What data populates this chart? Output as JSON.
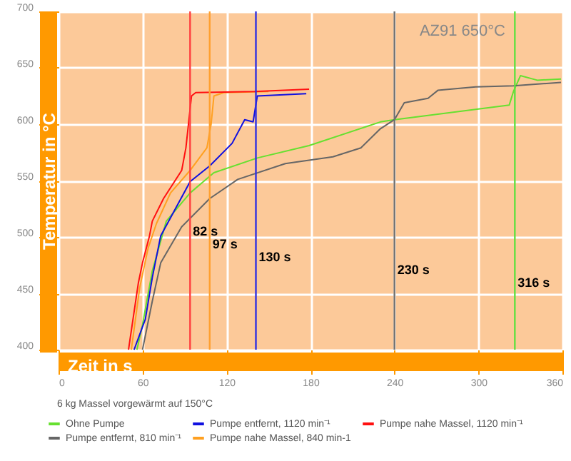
{
  "chart_data": {
    "type": "line",
    "title": "AZ91 650°C",
    "xlabel": "Zeit in s",
    "ylabel": "Temperatur in °C",
    "xlim": [
      0,
      360
    ],
    "xticks": [
      0,
      60,
      120,
      180,
      240,
      300,
      360
    ],
    "ylim": [
      400,
      700
    ],
    "yticks": [
      400,
      450,
      500,
      550,
      600,
      650,
      700
    ],
    "grid": true,
    "legend": "bottom",
    "annotations": [
      "6 kg Massel vorgewärmt auf 150°C"
    ],
    "series": [
      {
        "name": "Ohne Pumpe",
        "color": "#66e030",
        "x": [
          56,
          60,
          67,
          77,
          94,
          111,
          142,
          179,
          230,
          240,
          322,
          325,
          330,
          342,
          359
        ],
        "values": [
          400,
          422,
          470,
          514,
          539,
          557,
          570,
          581,
          602,
          604,
          617,
          629,
          643,
          639,
          640
        ]
      },
      {
        "name": "Pumpe entfernt, 810 min⁻¹",
        "color": "#666666",
        "x": [
          60,
          67,
          73,
          88,
          108,
          128,
          162,
          196,
          216,
          230,
          240,
          247,
          264,
          271,
          298,
          325,
          359
        ],
        "values": [
          400,
          443,
          477,
          509,
          534,
          551,
          565,
          571,
          579,
          596,
          604,
          619,
          623,
          630,
          633,
          634,
          637
        ]
      },
      {
        "name": "Pumpe entfernt, 1120 min⁻¹",
        "color": "#1010e0",
        "x": [
          54,
          62,
          67,
          73,
          94,
          108,
          124,
          133,
          139,
          142,
          177
        ],
        "values": [
          400,
          427,
          464,
          501,
          549,
          563,
          583,
          604,
          602,
          625,
          627
        ]
      },
      {
        "name": "Pumpe nahe Massel, 840 min-1",
        "color": "#ffa020",
        "x": [
          52,
          58,
          64,
          70,
          80,
          94,
          106,
          109,
          111,
          118,
          150
        ],
        "values": [
          400,
          455,
          490,
          512,
          539,
          559,
          579,
          600,
          625,
          628,
          629
        ]
      },
      {
        "name": "Pumpe nahe Massel, 1120 min⁻¹",
        "color": "#ff1010",
        "x": [
          50,
          57,
          60,
          65,
          67,
          75,
          88,
          91,
          95,
          98,
          140,
          179
        ],
        "values": [
          400,
          459,
          477,
          501,
          514,
          534,
          559,
          579,
          625,
          628,
          629,
          631
        ]
      }
    ],
    "ref_lines": [
      {
        "axis": "x",
        "value": 94,
        "label": "82 s",
        "color": "#ff4040"
      },
      {
        "axis": "x",
        "value": 108,
        "label": "97 s",
        "color": "#ffa030"
      },
      {
        "axis": "x",
        "value": 141,
        "label": "130 s",
        "color": "#3030e0"
      },
      {
        "axis": "x",
        "value": 240,
        "label": "230 s",
        "color": "#707070"
      },
      {
        "axis": "x",
        "value": 326,
        "label": "316 s",
        "color": "#60e040"
      }
    ]
  }
}
